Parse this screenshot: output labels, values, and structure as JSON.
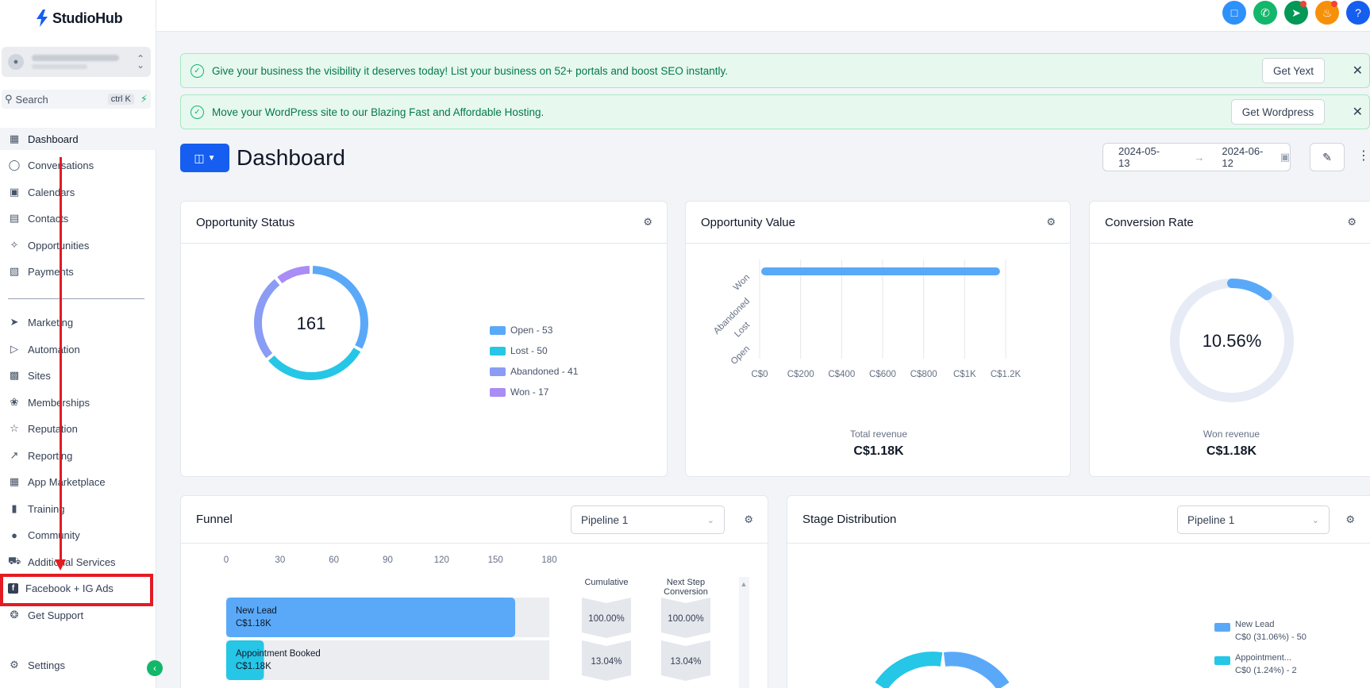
{
  "brand": {
    "name": "StudioHub"
  },
  "search": {
    "label": "Search",
    "shortcut": "ctrl K"
  },
  "sidebar": {
    "items": [
      {
        "label": "Dashboard",
        "icon": "grid-icon"
      },
      {
        "label": "Conversations",
        "icon": "chat-icon"
      },
      {
        "label": "Calendars",
        "icon": "calendar-icon"
      },
      {
        "label": "Contacts",
        "icon": "contacts-icon"
      },
      {
        "label": "Opportunities",
        "icon": "opportunities-icon"
      },
      {
        "label": "Payments",
        "icon": "payments-icon"
      },
      {
        "label": "Marketing",
        "icon": "send-icon"
      },
      {
        "label": "Automation",
        "icon": "automation-icon"
      },
      {
        "label": "Sites",
        "icon": "sites-icon"
      },
      {
        "label": "Memberships",
        "icon": "badge-icon"
      },
      {
        "label": "Reputation",
        "icon": "star-icon"
      },
      {
        "label": "Reporting",
        "icon": "trend-icon"
      },
      {
        "label": "App Marketplace",
        "icon": "apps-icon"
      },
      {
        "label": "Training",
        "icon": "book-icon"
      },
      {
        "label": "Community",
        "icon": "community-icon"
      },
      {
        "label": "Additional Services",
        "icon": "cart-icon"
      },
      {
        "label": "Facebook + IG Ads",
        "icon": "facebook-icon"
      },
      {
        "label": "Get Support",
        "icon": "support-icon"
      }
    ],
    "settings_label": "Settings"
  },
  "banners": [
    {
      "text": "Give your business the visibility it deserves today! List your business on 52+ portals and boost SEO instantly.",
      "button": "Get Yext"
    },
    {
      "text": "Move your WordPress site to our Blazing Fast and Affordable Hosting.",
      "button": "Get Wordpress"
    }
  ],
  "header": {
    "title": "Dashboard",
    "date_start": "2024-05-13",
    "date_end": "2024-06-12"
  },
  "opportunity_status": {
    "title": "Opportunity Status",
    "total": "161",
    "legend": [
      "Open - 53",
      "Lost - 50",
      "Abandoned - 41",
      "Won - 17"
    ]
  },
  "opportunity_value": {
    "title": "Opportunity Value",
    "footer_label": "Total revenue",
    "footer_value": "C$1.18K"
  },
  "conversion_rate": {
    "title": "Conversion Rate",
    "value": "10.56%",
    "footer_label": "Won revenue",
    "footer_value": "C$1.18K"
  },
  "funnel": {
    "title": "Funnel",
    "pipeline": "Pipeline 1",
    "col_cumulative": "Cumulative",
    "col_next_line1": "Next Step",
    "col_next_line2": "Conversion",
    "rows": [
      {
        "name": "New Lead",
        "value": "C$1.18K",
        "cumulative": "100.00%",
        "next": "100.00%"
      },
      {
        "name": "Appointment Booked",
        "value": "C$1.18K",
        "cumulative": "13.04%",
        "next": "13.04%"
      }
    ]
  },
  "stage_distribution": {
    "title": "Stage Distribution",
    "pipeline": "Pipeline 1",
    "legend": [
      {
        "name": "New Lead",
        "detail": "C$0 (31.06%) - 50"
      },
      {
        "name": "Appointment...",
        "detail": "C$0 (1.24%) - 2"
      }
    ]
  },
  "colors": {
    "open": "#5aa9f8",
    "lost": "#26c6e6",
    "abandoned": "#8b9cf4",
    "won": "#a98cf5",
    "accent": "#155eef"
  },
  "chart_data": [
    {
      "type": "pie",
      "title": "Opportunity Status",
      "categories": [
        "Open",
        "Lost",
        "Abandoned",
        "Won"
      ],
      "values": [
        53,
        50,
        41,
        17
      ]
    },
    {
      "type": "bar",
      "title": "Opportunity Value",
      "orientation": "horizontal",
      "categories": [
        "Open",
        "Lost",
        "Abandoned",
        "Won"
      ],
      "values": [
        0,
        0,
        0,
        1180
      ],
      "xlim": [
        0,
        1200
      ],
      "xtick_labels": [
        "C$0",
        "C$200",
        "C$400",
        "C$600",
        "C$800",
        "C$1K",
        "C$1.2K"
      ]
    },
    {
      "type": "bar",
      "title": "Funnel",
      "orientation": "horizontal",
      "categories": [
        "New Lead",
        "Appointment Booked"
      ],
      "values": [
        161,
        21
      ],
      "xlim": [
        0,
        180
      ],
      "xtick_labels": [
        "0",
        "30",
        "60",
        "90",
        "120",
        "150",
        "180"
      ]
    },
    {
      "type": "pie",
      "title": "Conversion Rate",
      "categories": [
        "Converted"
      ],
      "values": [
        10.56
      ]
    }
  ]
}
